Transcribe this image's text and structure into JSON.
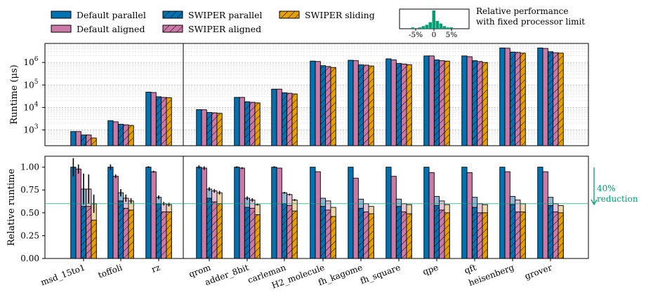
{
  "colors": {
    "default_parallel": "#0072b2",
    "default_aligned": "#cc79a7",
    "swiper_parallel": "#0072b2",
    "swiper_aligned": "#cc79a7",
    "swiper_sliding": "#e69f00",
    "reduction_accent": "#009e73",
    "faded_light_blue": "#8fb6d2",
    "faded_light_pink": "#e6c2d6",
    "faded_light_orange": "#f0d6a6"
  },
  "legend": {
    "items": [
      {
        "label": "Default parallel",
        "color": "#0072b2",
        "hatch": false
      },
      {
        "label": "Default aligned",
        "color": "#cc79a7",
        "hatch": false
      },
      {
        "label": "SWIPER parallel",
        "color": "#0072b2",
        "hatch": true
      },
      {
        "label": "SWIPER aligned",
        "color": "#cc79a7",
        "hatch": true
      },
      {
        "label": "SWIPER sliding",
        "color": "#e69f00",
        "hatch": true
      }
    ],
    "inset_caption": "Relative performance\nwith fixed processor limit",
    "inset_ticks": [
      "-5%",
      "0",
      "5%"
    ]
  },
  "annotation": {
    "line1": "40%",
    "line2": "reduction"
  },
  "chart_data": [
    {
      "type": "bar",
      "panel": "top",
      "ylabel": "Runtime (μs)",
      "yscale": "log",
      "ylim": [
        200,
        7000000
      ],
      "yticks": [
        "10^3",
        "10^4",
        "10^5",
        "10^6"
      ],
      "grid": true,
      "categories": [
        "msd_15to1",
        "toffoli",
        "rz",
        "qrom",
        "adder_8bit",
        "carleman",
        "H2_molecule",
        "fh_kagome",
        "fh_square",
        "qpe",
        "qft",
        "heisenberg",
        "grover"
      ],
      "series": [
        {
          "name": "Default parallel",
          "values": [
            850,
            2600,
            48000,
            8000,
            28000,
            65000,
            1150000,
            1250000,
            1450000,
            1950000,
            1950000,
            4400000,
            4400000
          ]
        },
        {
          "name": "Default aligned",
          "values": [
            850,
            2300,
            46000,
            7900,
            28000,
            65000,
            1100000,
            1200000,
            1300000,
            1950000,
            1800000,
            4300000,
            4200000
          ]
        },
        {
          "name": "SWIPER parallel",
          "values": [
            600,
            1800,
            30000,
            6000,
            18000,
            45000,
            720000,
            780000,
            900000,
            1300000,
            1200000,
            2900000,
            3000000
          ]
        },
        {
          "name": "SWIPER aligned",
          "values": [
            600,
            1700,
            28000,
            5800,
            17000,
            43000,
            660000,
            760000,
            850000,
            1200000,
            1100000,
            2800000,
            2700000
          ]
        },
        {
          "name": "SWIPER sliding",
          "values": [
            440,
            1600,
            27000,
            5500,
            16000,
            40000,
            600000,
            700000,
            800000,
            1150000,
            1000000,
            2600000,
            2600000
          ]
        }
      ]
    },
    {
      "type": "bar",
      "panel": "bottom",
      "ylabel": "Relative runtime",
      "ylim": [
        0,
        1.12
      ],
      "yticks": [
        "0.00",
        "0.25",
        "0.50",
        "0.75",
        "1.00"
      ],
      "reference_line": 0.6,
      "categories": [
        "msd_15to1",
        "toffoli",
        "rz",
        "qrom",
        "adder_8bit",
        "carleman",
        "H2_molecule",
        "fh_kagome",
        "fh_square",
        "qpe",
        "qft",
        "heisenberg",
        "grover"
      ],
      "series": [
        {
          "name": "Default parallel",
          "values": [
            1.0,
            1.0,
            1.0,
            1.0,
            1.0,
            1.0,
            1.0,
            1.0,
            1.0,
            1.0,
            1.0,
            1.0,
            1.0
          ]
        },
        {
          "name": "Default aligned",
          "values": [
            0.98,
            0.9,
            0.95,
            0.99,
            0.99,
            0.99,
            0.95,
            0.88,
            0.9,
            0.94,
            0.94,
            0.95,
            0.95
          ]
        },
        {
          "name": "SWIPER parallel",
          "values": [
            0.76,
            0.72,
            0.67,
            0.76,
            0.66,
            0.72,
            0.66,
            0.65,
            0.65,
            0.68,
            0.67,
            0.68,
            0.67
          ]
        },
        {
          "name": "SWIPER aligned",
          "values": [
            0.76,
            0.66,
            0.6,
            0.74,
            0.64,
            0.7,
            0.63,
            0.6,
            0.6,
            0.63,
            0.6,
            0.64,
            0.6
          ]
        },
        {
          "name": "SWIPER sliding",
          "values": [
            0.6,
            0.63,
            0.59,
            0.72,
            0.59,
            0.64,
            0.56,
            0.57,
            0.59,
            0.59,
            0.59,
            0.6,
            0.58
          ]
        }
      ],
      "fixed_limit_values": {
        "SWIPER parallel": [
          0.57,
          0.63,
          0.6,
          0.66,
          0.56,
          0.6,
          0.57,
          0.55,
          0.57,
          0.58,
          0.56,
          0.59,
          0.58
        ],
        "SWIPER aligned": [
          0.57,
          0.55,
          0.51,
          0.62,
          0.55,
          0.58,
          0.53,
          0.51,
          0.51,
          0.53,
          0.5,
          0.51,
          0.51
        ],
        "SWIPER sliding": [
          0.42,
          0.53,
          0.51,
          0.6,
          0.48,
          0.52,
          0.46,
          0.49,
          0.49,
          0.5,
          0.5,
          0.51,
          0.5
        ]
      },
      "error": {
        "Default parallel": [
          0.1,
          0.03,
          0.01,
          0.02,
          0.01,
          0.01,
          0.0,
          0.0,
          0.0,
          0.0,
          0.0,
          0.0,
          0.0
        ],
        "Default aligned": [
          0.05,
          0.02,
          0.01,
          0.02,
          0.01,
          0.0,
          0.0,
          0.0,
          0.0,
          0.0,
          0.0,
          0.0,
          0.0
        ],
        "SWIPER parallel": [
          0.17,
          0.04,
          0.02,
          0.02,
          0.02,
          0.01,
          0.0,
          0.0,
          0.0,
          0.0,
          0.0,
          0.0,
          0.0
        ],
        "SWIPER aligned": [
          0.16,
          0.04,
          0.02,
          0.02,
          0.02,
          0.01,
          0.0,
          0.0,
          0.0,
          0.0,
          0.0,
          0.0,
          0.0
        ],
        "SWIPER sliding": [
          0.1,
          0.03,
          0.02,
          0.02,
          0.01,
          0.01,
          0.0,
          0.0,
          0.0,
          0.0,
          0.0,
          0.0,
          0.0
        ]
      }
    }
  ],
  "inset_histogram": {
    "type": "bar",
    "xticks": [
      "-5%",
      "0",
      "5%"
    ],
    "bins": [
      -6,
      -5,
      -4,
      -3,
      -2,
      -1,
      0,
      1,
      2,
      3,
      4,
      5,
      6
    ],
    "counts": [
      1,
      0,
      1,
      2,
      3,
      5,
      14,
      6,
      4,
      2,
      1,
      1,
      0
    ]
  }
}
